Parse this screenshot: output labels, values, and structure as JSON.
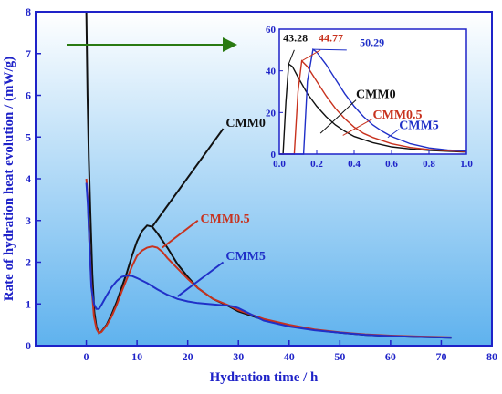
{
  "colors": {
    "axis": "#1e22c8",
    "background_top": "#ffffff",
    "background_bottom": "#5fb2ee",
    "arrow": "#2a7a12",
    "series": [
      "#111111",
      "#c8321e",
      "#2030c8"
    ]
  },
  "chart_data": [
    {
      "type": "line",
      "xlabel": "Hydration time / h",
      "ylabel": "Rate of hydration heat evolution / (mW/g)",
      "xlim": [
        -10,
        80
      ],
      "ylim": [
        0,
        8
      ],
      "xticks": [
        "0",
        "10",
        "20",
        "30",
        "40",
        "50",
        "60",
        "70",
        "80"
      ],
      "yticks": [
        "0",
        "1",
        "2",
        "3",
        "4",
        "5",
        "6",
        "7",
        "8"
      ],
      "legend": "annotations",
      "series": [
        {
          "name": "CMM0",
          "points": [
            [
              0,
              8
            ],
            [
              0.25,
              6
            ],
            [
              0.5,
              4.5
            ],
            [
              0.8,
              3.2
            ],
            [
              1.2,
              1.7
            ],
            [
              1.6,
              0.8
            ],
            [
              2,
              0.45
            ],
            [
              2.5,
              0.3
            ],
            [
              3,
              0.34
            ],
            [
              4,
              0.5
            ],
            [
              5,
              0.75
            ],
            [
              6,
              1.05
            ],
            [
              7,
              1.4
            ],
            [
              8,
              1.75
            ],
            [
              9,
              2.15
            ],
            [
              10,
              2.5
            ],
            [
              11,
              2.75
            ],
            [
              12,
              2.88
            ],
            [
              13,
              2.85
            ],
            [
              14,
              2.7
            ],
            [
              16,
              2.35
            ],
            [
              18,
              1.95
            ],
            [
              20,
              1.65
            ],
            [
              22,
              1.38
            ],
            [
              25,
              1.12
            ],
            [
              28,
              0.95
            ],
            [
              30,
              0.82
            ],
            [
              35,
              0.62
            ],
            [
              40,
              0.48
            ],
            [
              45,
              0.38
            ],
            [
              50,
              0.31
            ],
            [
              55,
              0.26
            ],
            [
              60,
              0.23
            ],
            [
              65,
              0.21
            ],
            [
              72,
              0.19
            ]
          ]
        },
        {
          "name": "CMM0.5",
          "points": [
            [
              0,
              4
            ],
            [
              0.3,
              3.5
            ],
            [
              0.6,
              2.5
            ],
            [
              1,
              1.5
            ],
            [
              1.5,
              0.7
            ],
            [
              2,
              0.4
            ],
            [
              2.5,
              0.3
            ],
            [
              3,
              0.33
            ],
            [
              4,
              0.48
            ],
            [
              5,
              0.7
            ],
            [
              6,
              0.98
            ],
            [
              7,
              1.3
            ],
            [
              8,
              1.6
            ],
            [
              9,
              1.9
            ],
            [
              10,
              2.15
            ],
            [
              11,
              2.28
            ],
            [
              12,
              2.35
            ],
            [
              13,
              2.38
            ],
            [
              14,
              2.35
            ],
            [
              15,
              2.25
            ],
            [
              16,
              2.1
            ],
            [
              18,
              1.85
            ],
            [
              20,
              1.6
            ],
            [
              22,
              1.38
            ],
            [
              25,
              1.12
            ],
            [
              28,
              0.97
            ],
            [
              30,
              0.85
            ],
            [
              35,
              0.64
            ],
            [
              40,
              0.5
            ],
            [
              45,
              0.39
            ],
            [
              50,
              0.32
            ],
            [
              55,
              0.27
            ],
            [
              60,
              0.24
            ],
            [
              65,
              0.22
            ],
            [
              72,
              0.2
            ]
          ]
        },
        {
          "name": "CMM5",
          "points": [
            [
              0,
              3.9
            ],
            [
              0.3,
              3.4
            ],
            [
              0.6,
              2.5
            ],
            [
              1,
              1.4
            ],
            [
              1.5,
              1.0
            ],
            [
              2,
              0.88
            ],
            [
              2.5,
              0.88
            ],
            [
              3,
              0.98
            ],
            [
              4,
              1.2
            ],
            [
              5,
              1.4
            ],
            [
              6,
              1.55
            ],
            [
              7,
              1.65
            ],
            [
              8,
              1.68
            ],
            [
              9,
              1.67
            ],
            [
              10,
              1.62
            ],
            [
              12,
              1.5
            ],
            [
              14,
              1.35
            ],
            [
              16,
              1.22
            ],
            [
              18,
              1.12
            ],
            [
              20,
              1.06
            ],
            [
              22,
              1.02
            ],
            [
              24,
              1.0
            ],
            [
              26,
              0.98
            ],
            [
              28,
              0.96
            ],
            [
              29,
              0.94
            ],
            [
              30,
              0.9
            ],
            [
              32,
              0.78
            ],
            [
              35,
              0.6
            ],
            [
              40,
              0.46
            ],
            [
              45,
              0.37
            ],
            [
              50,
              0.31
            ],
            [
              55,
              0.26
            ],
            [
              60,
              0.23
            ],
            [
              65,
              0.21
            ],
            [
              72,
              0.19
            ]
          ]
        }
      ]
    },
    {
      "type": "line",
      "inset": true,
      "xlim": [
        0,
        1.0
      ],
      "ylim": [
        0,
        60
      ],
      "xticks": [
        "0.0",
        "0.2",
        "0.4",
        "0.6",
        "0.8",
        "1.0"
      ],
      "yticks": [
        "0",
        "20",
        "40",
        "60"
      ],
      "series": [
        {
          "name": "CMM0",
          "peak": "43.28",
          "points": [
            [
              0,
              0
            ],
            [
              0.02,
              0
            ],
            [
              0.035,
              25
            ],
            [
              0.05,
              43.28
            ],
            [
              0.07,
              42
            ],
            [
              0.1,
              37
            ],
            [
              0.15,
              29
            ],
            [
              0.2,
              23
            ],
            [
              0.25,
              18
            ],
            [
              0.3,
              14
            ],
            [
              0.35,
              11
            ],
            [
              0.4,
              8.5
            ],
            [
              0.5,
              5.5
            ],
            [
              0.6,
              3.5
            ],
            [
              0.7,
              2.5
            ],
            [
              0.8,
              1.8
            ],
            [
              1.0,
              1.0
            ]
          ]
        },
        {
          "name": "CMM0.5",
          "peak": "44.77",
          "points": [
            [
              0,
              0
            ],
            [
              0.08,
              0
            ],
            [
              0.1,
              30
            ],
            [
              0.12,
              44.77
            ],
            [
              0.15,
              42
            ],
            [
              0.2,
              35
            ],
            [
              0.25,
              28
            ],
            [
              0.3,
              22
            ],
            [
              0.35,
              17
            ],
            [
              0.4,
              13
            ],
            [
              0.45,
              10
            ],
            [
              0.5,
              8
            ],
            [
              0.6,
              5
            ],
            [
              0.7,
              3.2
            ],
            [
              0.8,
              2.2
            ],
            [
              1.0,
              1.2
            ]
          ]
        },
        {
          "name": "CMM5",
          "peak": "50.29",
          "points": [
            [
              0,
              0
            ],
            [
              0.13,
              0
            ],
            [
              0.15,
              35
            ],
            [
              0.18,
              50.29
            ],
            [
              0.2,
              49
            ],
            [
              0.25,
              43
            ],
            [
              0.3,
              36
            ],
            [
              0.35,
              29
            ],
            [
              0.4,
              23
            ],
            [
              0.45,
              18
            ],
            [
              0.5,
              14
            ],
            [
              0.55,
              11
            ],
            [
              0.6,
              8.5
            ],
            [
              0.7,
              5
            ],
            [
              0.8,
              3
            ],
            [
              0.9,
              2
            ],
            [
              1.0,
              1.5
            ]
          ]
        }
      ]
    }
  ]
}
